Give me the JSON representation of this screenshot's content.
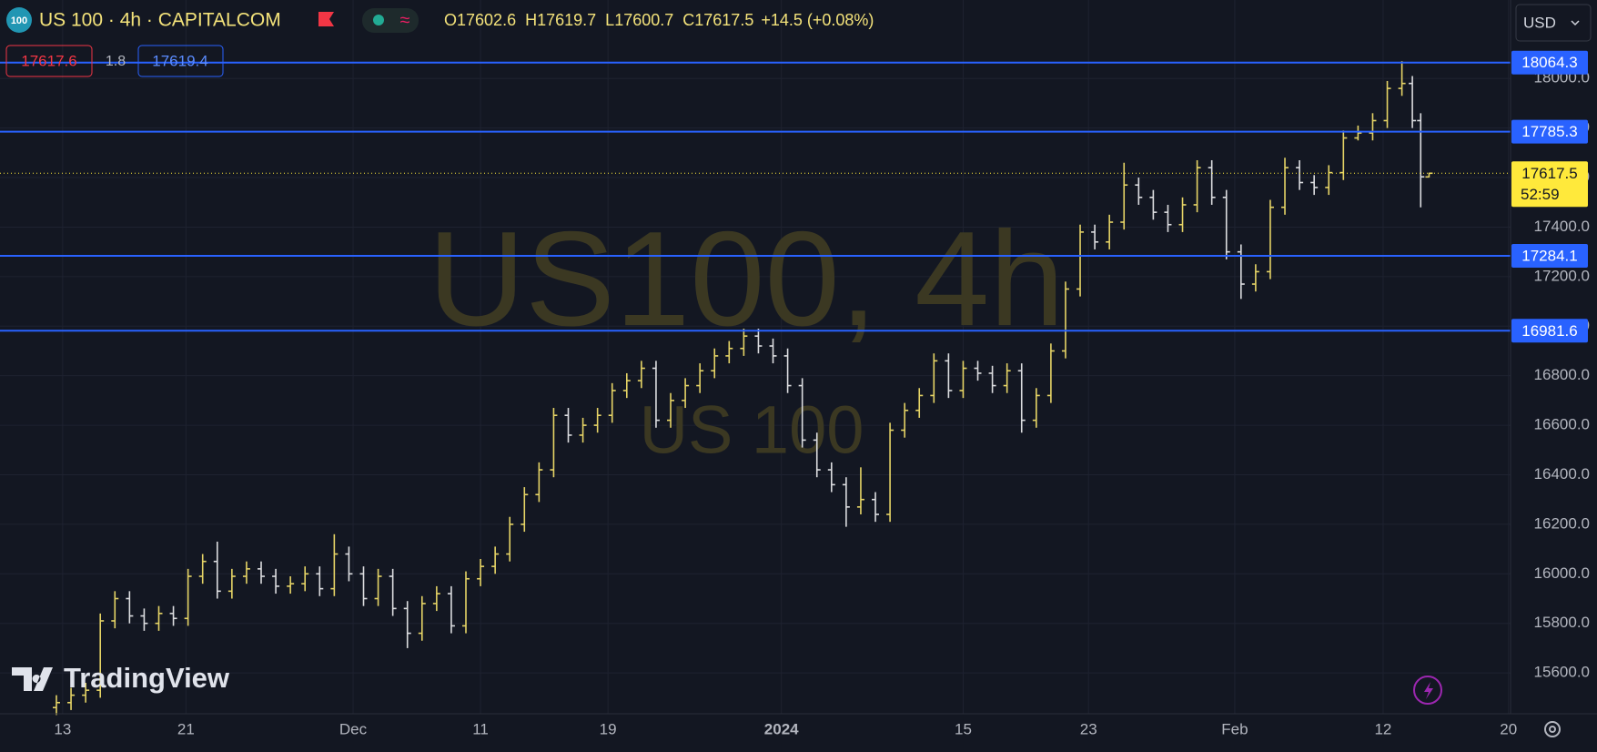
{
  "chart_data": {
    "type": "ohlc",
    "symbol_badge": "100",
    "title": "US 100 · 4h · CAPITALCOM",
    "legend": [
      {
        "label": "O",
        "value": 17602.6
      },
      {
        "label": "H",
        "value": 17619.7
      },
      {
        "label": "L",
        "value": 17600.7
      },
      {
        "label": "C",
        "value": 17617.5
      }
    ],
    "change": "+14.5 (+0.08%)",
    "sell_price": "17617.6",
    "spread": "1.8",
    "buy_price": "17619.4",
    "currency": "USD",
    "watermark": "US100, 4h",
    "watermark_sub": "US 100",
    "brand": "TradingView",
    "up_color": "#e6d466",
    "down_color": "#dcdde0",
    "line_color": "#2962ff",
    "last_price": 17617.5,
    "last_price_color": "#ffe93b",
    "countdown": "52:59",
    "hlines": [
      18064.3,
      17785.3,
      17284.1,
      16981.6
    ],
    "grid": true,
    "xlim": [
      -3,
      69.3
    ],
    "xticks": [
      {
        "value": 0,
        "label": "13"
      },
      {
        "value": 5.9,
        "label": "21"
      },
      {
        "value": 13.9,
        "label": "Dec"
      },
      {
        "value": 20,
        "label": "11"
      },
      {
        "value": 26.1,
        "label": "19"
      },
      {
        "value": 34.4,
        "label": "2024"
      },
      {
        "value": 43.1,
        "label": "15"
      },
      {
        "value": 49.1,
        "label": "23"
      },
      {
        "value": 56.1,
        "label": "Feb"
      },
      {
        "value": 63.2,
        "label": "12"
      },
      {
        "value": 69.2,
        "label": "20"
      }
    ],
    "ylim": [
      15435,
      18317
    ],
    "yticks": [
      {
        "value": 15600,
        "label": "15600.0"
      },
      {
        "value": 15800,
        "label": "15800.0"
      },
      {
        "value": 16000,
        "label": "16000.0"
      },
      {
        "value": 16200,
        "label": "16200.0"
      },
      {
        "value": 16400,
        "label": "16400.0"
      },
      {
        "value": 16600,
        "label": "16600.0"
      },
      {
        "value": 16800,
        "label": "16800.0"
      },
      {
        "value": 17000,
        "label": "17000.0"
      },
      {
        "value": 17200,
        "label": "17200.0"
      },
      {
        "value": 17400,
        "label": "17400.0"
      },
      {
        "value": 17600,
        "label": "17600.0"
      },
      {
        "value": 17800,
        "label": "17800.0"
      },
      {
        "value": 18000,
        "label": "18000.0"
      }
    ],
    "x": [
      -0.3,
      0.4,
      1.1,
      1.8,
      2.5,
      3.2,
      3.9,
      4.6,
      5.3,
      6,
      6.7,
      7.4,
      8.1,
      8.8,
      9.5,
      10.2,
      10.9,
      11.6,
      12.3,
      13,
      13.7,
      14.4,
      15.1,
      15.8,
      16.5,
      17.2,
      17.9,
      18.6,
      19.3,
      20,
      20.7,
      21.4,
      22.1,
      22.8,
      23.5,
      24.2,
      24.9,
      25.6,
      26.3,
      27,
      27.7,
      28.4,
      29.1,
      29.8,
      30.5,
      31.2,
      31.9,
      32.6,
      33.3,
      34,
      34.7,
      35.4,
      36.1,
      36.8,
      37.5,
      38.2,
      38.9,
      39.6,
      40.3,
      41,
      41.7,
      42.4,
      43.1,
      43.8,
      44.5,
      45.2,
      45.9,
      46.6,
      47.3,
      48,
      48.7,
      49.4,
      50.1,
      50.8,
      51.5,
      52.2,
      52.9,
      53.6,
      54.3,
      55,
      55.7,
      56.4,
      57.1,
      57.8,
      58.5,
      59.2,
      59.9,
      60.6,
      61.3,
      62,
      62.7,
      63.4,
      64.1,
      64.6,
      65,
      65.4
    ],
    "open": [
      15460,
      15480,
      15510,
      15530,
      15810,
      15900,
      15830,
      15800,
      15840,
      15820,
      15990,
      16050,
      15930,
      15990,
      16020,
      15990,
      15950,
      15960,
      16000,
      15940,
      16080,
      16000,
      15900,
      15990,
      15860,
      15760,
      15880,
      15920,
      15790,
      15980,
      16030,
      16080,
      16200,
      16320,
      16420,
      16640,
      16560,
      16600,
      16640,
      16740,
      16780,
      16830,
      16620,
      16700,
      16760,
      16820,
      16880,
      16910,
      16960,
      16920,
      16880,
      16760,
      16540,
      16420,
      16360,
      16270,
      16300,
      16240,
      16580,
      16660,
      16720,
      16860,
      16740,
      16830,
      16810,
      16760,
      16820,
      16620,
      16720,
      16900,
      17150,
      17380,
      17340,
      17420,
      17570,
      17520,
      17460,
      17410,
      17490,
      17640,
      17520,
      17300,
      17170,
      17220,
      17480,
      17640,
      17580,
      17560,
      17620,
      17760,
      17780,
      17830,
      17960,
      17980,
      17830,
      17602.6
    ],
    "high": [
      15510,
      15540,
      15560,
      15840,
      15930,
      15930,
      15860,
      15870,
      15870,
      16020,
      16080,
      16130,
      16020,
      16050,
      16050,
      16020,
      15990,
      16030,
      16030,
      16160,
      16110,
      16030,
      16020,
      16020,
      15890,
      15910,
      15950,
      15950,
      16010,
      16060,
      16110,
      16230,
      16350,
      16450,
      16670,
      16670,
      16630,
      16670,
      16770,
      16810,
      16860,
      16860,
      16730,
      16790,
      16850,
      16910,
      16940,
      16990,
      16990,
      16950,
      16910,
      16790,
      16570,
      16450,
      16390,
      16430,
      16330,
      16610,
      16690,
      16750,
      16890,
      16890,
      16860,
      16860,
      16840,
      16850,
      16850,
      16750,
      16930,
      17180,
      17410,
      17410,
      17450,
      17660,
      17600,
      17550,
      17490,
      17520,
      17670,
      17670,
      17550,
      17330,
      17250,
      17510,
      17680,
      17670,
      17610,
      17650,
      17790,
      17810,
      17860,
      17990,
      18070,
      18010,
      17860,
      17619.7
    ],
    "low": [
      15430,
      15450,
      15480,
      15500,
      15780,
      15800,
      15770,
      15770,
      15790,
      15790,
      15960,
      15900,
      15900,
      15960,
      15960,
      15920,
      15920,
      15930,
      15910,
      15910,
      15970,
      15870,
      15870,
      15830,
      15700,
      15730,
      15850,
      15760,
      15760,
      15950,
      16000,
      16050,
      16170,
      16290,
      16390,
      16530,
      16530,
      16570,
      16610,
      16710,
      16750,
      16590,
      16590,
      16670,
      16730,
      16790,
      16850,
      16880,
      16890,
      16850,
      16730,
      16510,
      16390,
      16330,
      16190,
      16240,
      16210,
      16210,
      16550,
      16630,
      16690,
      16710,
      16710,
      16780,
      16730,
      16730,
      16570,
      16590,
      16690,
      16870,
      17120,
      17310,
      17310,
      17390,
      17490,
      17430,
      17380,
      17380,
      17460,
      17490,
      17270,
      17110,
      17140,
      17190,
      17450,
      17550,
      17530,
      17530,
      17590,
      17750,
      17750,
      17800,
      17930,
      17800,
      17480,
      17600.7
    ],
    "close": [
      15480,
      15510,
      15530,
      15810,
      15900,
      15830,
      15800,
      15840,
      15820,
      15990,
      16050,
      15930,
      15990,
      16020,
      15990,
      15950,
      15960,
      16000,
      15940,
      16080,
      16000,
      15900,
      15990,
      15860,
      15760,
      15880,
      15920,
      15790,
      15980,
      16030,
      16080,
      16200,
      16320,
      16420,
      16640,
      16560,
      16600,
      16640,
      16740,
      16780,
      16830,
      16620,
      16700,
      16760,
      16820,
      16880,
      16910,
      16960,
      16920,
      16880,
      16760,
      16540,
      16420,
      16360,
      16270,
      16300,
      16240,
      16580,
      16660,
      16720,
      16860,
      16740,
      16830,
      16810,
      16760,
      16820,
      16620,
      16720,
      16900,
      17150,
      17380,
      17340,
      17420,
      17570,
      17520,
      17460,
      17410,
      17490,
      17640,
      17520,
      17300,
      17170,
      17220,
      17480,
      17640,
      17580,
      17560,
      17620,
      17760,
      17780,
      17830,
      17960,
      17980,
      17830,
      17603,
      17617.5
    ]
  }
}
